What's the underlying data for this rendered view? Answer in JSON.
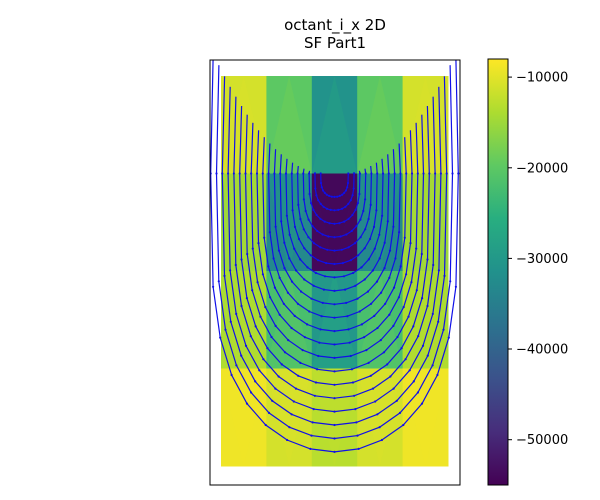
{
  "chart_data": {
    "type": "heatmap",
    "title_line1": "octant_i_x 2D",
    "title_line2": "SF Part1",
    "colormap": "viridis",
    "colorbar": {
      "range": [
        -55000,
        -8000
      ],
      "ticks": [
        -10000,
        -20000,
        -30000,
        -40000,
        -50000
      ],
      "tick_labels": [
        "−10000",
        "−20000",
        "−30000",
        "−40000",
        "−50000"
      ]
    },
    "mesh": {
      "cols": 5,
      "rows": 4,
      "cell_values": [
        [
          -11000,
          -20000,
          -31000,
          -20000,
          -11000
        ],
        [
          -15000,
          -33000,
          -54000,
          -33000,
          -15000
        ],
        [
          -14000,
          -22000,
          -30000,
          -22000,
          -14000
        ],
        [
          -9000,
          -11000,
          -13000,
          -11000,
          -9000
        ]
      ]
    },
    "contour_color": "#1010e8",
    "contour_levels": 20
  }
}
